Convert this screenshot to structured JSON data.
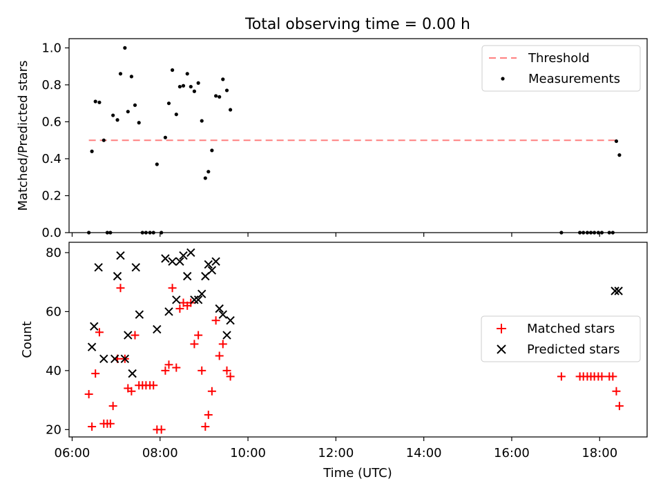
{
  "figure_title": "Total observing time = 0.00 h",
  "xlabel": "Time (UTC)",
  "x_ticks": [
    "06:00",
    "08:00",
    "10:00",
    "12:00",
    "14:00",
    "16:00",
    "18:00"
  ],
  "chart_data": [
    {
      "type": "scatter",
      "ylabel": "Matched/Predicted stars",
      "xlim": [
        5.93,
        19.08
      ],
      "ylim": [
        0,
        1.05
      ],
      "y_ticks": [
        "0.0",
        "0.2",
        "0.4",
        "0.6",
        "0.8",
        "1.0"
      ],
      "grid": false,
      "legend": "top-right",
      "threshold": {
        "name": "Threshold",
        "y": 0.5,
        "x": [
          6.38,
          18.35
        ],
        "color": "#ff7f7f",
        "style": "dashed"
      },
      "series": [
        {
          "name": "Measurements",
          "color": "#000000",
          "marker": "dot",
          "x": [
            6.38,
            6.45,
            6.53,
            6.62,
            6.72,
            6.8,
            6.87,
            6.93,
            7.03,
            7.1,
            7.27,
            7.35,
            7.43,
            7.52,
            7.6,
            7.68,
            7.77,
            7.85,
            7.93,
            8.03,
            8.12,
            8.2,
            8.28,
            8.37,
            8.45,
            8.53,
            8.62,
            8.7,
            8.78,
            8.87,
            8.95,
            9.03,
            9.1,
            9.18,
            9.27,
            9.35,
            9.43,
            9.52,
            9.6,
            7.2,
            17.13,
            17.55,
            17.63,
            17.72,
            17.8,
            17.88,
            17.97,
            18.05,
            18.22,
            18.3,
            18.38,
            18.45
          ],
          "y": [
            0.0,
            0.44,
            0.71,
            0.705,
            0.5,
            0.0,
            0.0,
            0.635,
            0.61,
            0.86,
            0.655,
            0.845,
            0.69,
            0.595,
            0.0,
            0.0,
            0.0,
            0.0,
            0.37,
            0.0,
            0.515,
            0.7,
            0.88,
            0.64,
            0.79,
            0.795,
            0.86,
            0.79,
            0.765,
            0.81,
            0.605,
            0.295,
            0.33,
            0.445,
            0.74,
            0.735,
            0.83,
            0.77,
            0.665,
            1.0,
            0.0,
            0.0,
            0.0,
            0.0,
            0.0,
            0.0,
            0.0,
            0.0,
            0.0,
            0.0,
            0.495,
            0.42
          ]
        }
      ]
    },
    {
      "type": "scatter",
      "ylabel": "Count",
      "xlim": [
        5.93,
        19.08
      ],
      "ylim": [
        17.5,
        83.5
      ],
      "y_ticks": [
        "20",
        "40",
        "60",
        "80"
      ],
      "grid": false,
      "legend": "center-right",
      "series": [
        {
          "name": "Matched stars",
          "color": "#ff0000",
          "marker": "plus",
          "x": [
            6.38,
            6.45,
            6.53,
            6.62,
            6.72,
            6.8,
            6.87,
            6.93,
            7.03,
            7.1,
            7.2,
            7.27,
            7.35,
            7.43,
            7.52,
            7.6,
            7.68,
            7.77,
            7.85,
            7.93,
            8.03,
            8.12,
            8.2,
            8.28,
            8.37,
            8.45,
            8.53,
            8.62,
            8.7,
            8.78,
            8.87,
            8.95,
            9.03,
            9.1,
            9.18,
            9.27,
            9.35,
            9.43,
            9.52,
            9.6,
            17.13,
            17.55,
            17.63,
            17.72,
            17.8,
            17.88,
            17.97,
            18.05,
            18.22,
            18.3,
            18.38,
            18.45
          ],
          "y": [
            32,
            21,
            39,
            53,
            22,
            22,
            22,
            28,
            44,
            68,
            44,
            34,
            33,
            52,
            35,
            35,
            35,
            35,
            35,
            20,
            20,
            40,
            42,
            68,
            41,
            61,
            63,
            62,
            63,
            49,
            52,
            40,
            21,
            25,
            33,
            57,
            45,
            49,
            40,
            38,
            38,
            38,
            38,
            38,
            38,
            38,
            38,
            38,
            38,
            38,
            33,
            28
          ]
        },
        {
          "name": "Predicted stars",
          "color": "#000000",
          "marker": "x",
          "x": [
            6.45,
            6.5,
            6.6,
            6.72,
            6.97,
            7.03,
            7.1,
            7.2,
            7.27,
            7.37,
            7.45,
            7.53,
            7.93,
            8.12,
            8.2,
            8.28,
            8.37,
            8.45,
            8.53,
            8.62,
            8.7,
            8.78,
            8.87,
            8.95,
            9.03,
            9.1,
            9.18,
            9.27,
            9.35,
            9.43,
            9.52,
            9.6,
            18.35,
            18.43
          ],
          "y": [
            48,
            55,
            75,
            44,
            44,
            72,
            79,
            44,
            52,
            39,
            75,
            59,
            54,
            78,
            60,
            77,
            64,
            77,
            79,
            72,
            80,
            64,
            64,
            66,
            72,
            76,
            74,
            77,
            61,
            59,
            52,
            57,
            67,
            67
          ]
        }
      ]
    }
  ]
}
